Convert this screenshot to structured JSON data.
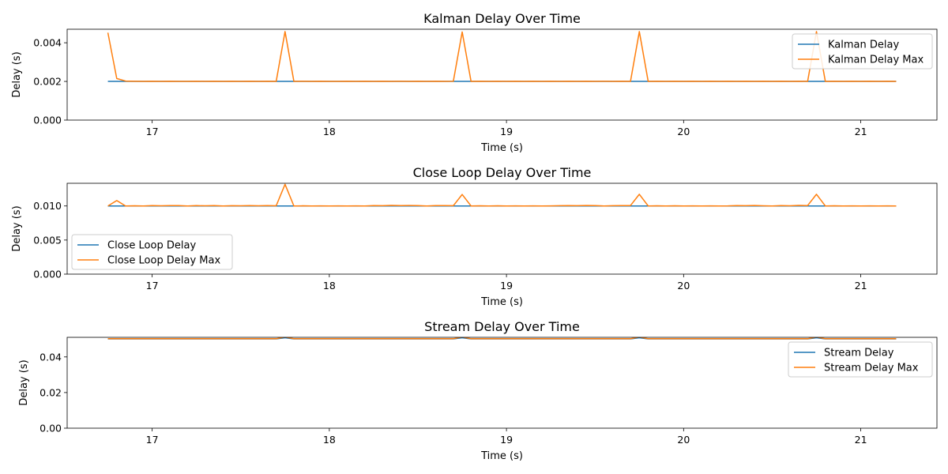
{
  "chart_data": [
    {
      "type": "line",
      "title": "Kalman Delay Over Time",
      "xlabel": "Time (s)",
      "ylabel": "Delay (s)",
      "xlim": [
        16.52,
        21.43
      ],
      "ylim": [
        0,
        0.0047
      ],
      "xticks": [
        17,
        18,
        19,
        20,
        21
      ],
      "xtick_labels": [
        "17",
        "18",
        "19",
        "20",
        "21"
      ],
      "yticks": [
        0,
        0.002,
        0.004
      ],
      "ytick_labels": [
        "0.000",
        "0.002",
        "0.004"
      ],
      "grid": false,
      "legend_position": "upper-right",
      "x": [
        16.75,
        16.8,
        16.85,
        16.9,
        16.95,
        17.0,
        17.05,
        17.1,
        17.15,
        17.2,
        17.25,
        17.3,
        17.35,
        17.4,
        17.45,
        17.5,
        17.55,
        17.6,
        17.65,
        17.7,
        17.75,
        17.8,
        17.85,
        17.9,
        17.95,
        18.0,
        18.05,
        18.1,
        18.15,
        18.2,
        18.25,
        18.3,
        18.35,
        18.4,
        18.45,
        18.5,
        18.55,
        18.6,
        18.65,
        18.7,
        18.75,
        18.8,
        18.85,
        18.9,
        18.95,
        19.0,
        19.05,
        19.1,
        19.15,
        19.2,
        19.25,
        19.3,
        19.35,
        19.4,
        19.45,
        19.5,
        19.55,
        19.6,
        19.65,
        19.7,
        19.75,
        19.8,
        19.85,
        19.9,
        19.95,
        20.0,
        20.05,
        20.1,
        20.15,
        20.2,
        20.25,
        20.3,
        20.35,
        20.4,
        20.45,
        20.5,
        20.55,
        20.6,
        20.65,
        20.7,
        20.75,
        20.8,
        20.85,
        20.9,
        20.95,
        21.0,
        21.05,
        21.1,
        21.15,
        21.2
      ],
      "series": [
        {
          "name": "Kalman Delay",
          "color": "#1f77b4",
          "values": [
            0.002,
            0.002,
            0.002,
            0.002,
            0.002,
            0.002,
            0.002,
            0.002,
            0.002,
            0.002,
            0.002,
            0.002,
            0.002,
            0.002,
            0.002,
            0.002,
            0.002,
            0.002,
            0.002,
            0.002,
            0.002,
            0.002,
            0.002,
            0.002,
            0.002,
            0.002,
            0.002,
            0.002,
            0.002,
            0.002,
            0.002,
            0.002,
            0.002,
            0.002,
            0.002,
            0.002,
            0.002,
            0.002,
            0.002,
            0.002,
            0.002,
            0.002,
            0.002,
            0.002,
            0.002,
            0.002,
            0.002,
            0.002,
            0.002,
            0.002,
            0.002,
            0.002,
            0.002,
            0.002,
            0.002,
            0.002,
            0.002,
            0.002,
            0.002,
            0.002,
            0.002,
            0.002,
            0.002,
            0.002,
            0.002,
            0.002,
            0.002,
            0.002,
            0.002,
            0.002,
            0.002,
            0.002,
            0.002,
            0.002,
            0.002,
            0.002,
            0.002,
            0.002,
            0.002,
            0.002,
            0.002,
            0.002,
            0.002,
            0.002,
            0.002,
            0.002,
            0.002,
            0.002,
            0.002,
            0.002
          ]
        },
        {
          "name": "Kalman Delay Max",
          "color": "#ff7f0e",
          "values": [
            0.00452,
            0.00215,
            0.00202,
            0.00201,
            0.002,
            0.00201,
            0.002,
            0.00201,
            0.002,
            0.002,
            0.00201,
            0.002,
            0.00201,
            0.002,
            0.00201,
            0.002,
            0.00201,
            0.002,
            0.00201,
            0.002,
            0.00458,
            0.002,
            0.00201,
            0.002,
            0.00201,
            0.002,
            0.002,
            0.00201,
            0.002,
            0.00201,
            0.002,
            0.00201,
            0.002,
            0.00201,
            0.002,
            0.00201,
            0.002,
            0.00201,
            0.002,
            0.00201,
            0.00456,
            0.002,
            0.00201,
            0.002,
            0.00201,
            0.002,
            0.00201,
            0.002,
            0.00201,
            0.002,
            0.00201,
            0.002,
            0.00201,
            0.002,
            0.00201,
            0.002,
            0.00201,
            0.002,
            0.00201,
            0.002,
            0.00458,
            0.002,
            0.00201,
            0.002,
            0.00201,
            0.002,
            0.00201,
            0.002,
            0.00201,
            0.002,
            0.00201,
            0.002,
            0.00201,
            0.002,
            0.00201,
            0.002,
            0.00201,
            0.002,
            0.00201,
            0.002,
            0.00458,
            0.002,
            0.00201,
            0.002,
            0.00201,
            0.002,
            0.00201,
            0.002,
            0.00201,
            0.002
          ]
        }
      ]
    },
    {
      "type": "line",
      "title": "Close Loop Delay Over Time",
      "xlabel": "Time (s)",
      "ylabel": "Delay (s)",
      "xlim": [
        16.52,
        21.43
      ],
      "ylim": [
        0,
        0.01333
      ],
      "xticks": [
        17,
        18,
        19,
        20,
        21
      ],
      "xtick_labels": [
        "17",
        "18",
        "19",
        "20",
        "21"
      ],
      "yticks": [
        0,
        0.005,
        0.01
      ],
      "ytick_labels": [
        "0.000",
        "0.005",
        "0.010"
      ],
      "grid": false,
      "legend_position": "lower-left",
      "x": [
        16.75,
        16.8,
        16.85,
        16.9,
        16.95,
        17.0,
        17.05,
        17.1,
        17.15,
        17.2,
        17.25,
        17.3,
        17.35,
        17.4,
        17.45,
        17.5,
        17.55,
        17.6,
        17.65,
        17.7,
        17.75,
        17.8,
        17.85,
        17.9,
        17.95,
        18.0,
        18.05,
        18.1,
        18.15,
        18.2,
        18.25,
        18.3,
        18.35,
        18.4,
        18.45,
        18.5,
        18.55,
        18.6,
        18.65,
        18.7,
        18.75,
        18.8,
        18.85,
        18.9,
        18.95,
        19.0,
        19.05,
        19.1,
        19.15,
        19.2,
        19.25,
        19.3,
        19.35,
        19.4,
        19.45,
        19.5,
        19.55,
        19.6,
        19.65,
        19.7,
        19.75,
        19.8,
        19.85,
        19.9,
        19.95,
        20.0,
        20.05,
        20.1,
        20.15,
        20.2,
        20.25,
        20.3,
        20.35,
        20.4,
        20.45,
        20.5,
        20.55,
        20.6,
        20.65,
        20.7,
        20.75,
        20.8,
        20.85,
        20.9,
        20.95,
        21.0,
        21.05,
        21.1,
        21.15,
        21.2
      ],
      "series": [
        {
          "name": "Close Loop Delay",
          "color": "#1f77b4",
          "values": [
            0.01,
            0.01,
            0.01,
            0.01,
            0.01,
            0.01,
            0.01,
            0.01,
            0.01,
            0.01,
            0.01,
            0.01,
            0.01,
            0.01,
            0.01,
            0.01,
            0.01,
            0.01,
            0.01,
            0.01,
            0.01,
            0.01,
            0.01,
            0.01,
            0.01,
            0.01,
            0.01,
            0.01,
            0.01,
            0.01,
            0.01,
            0.01,
            0.01,
            0.01,
            0.01,
            0.01,
            0.01,
            0.01,
            0.01,
            0.01,
            0.01,
            0.01,
            0.01,
            0.01,
            0.01,
            0.01,
            0.01,
            0.01,
            0.01,
            0.01,
            0.01,
            0.01,
            0.01,
            0.01,
            0.01,
            0.01,
            0.01,
            0.01,
            0.01,
            0.01,
            0.01,
            0.01,
            0.01,
            0.01,
            0.01,
            0.01,
            0.01,
            0.01,
            0.01,
            0.01,
            0.01,
            0.01,
            0.01,
            0.01,
            0.01,
            0.01,
            0.01,
            0.01,
            0.01,
            0.01,
            0.01,
            0.01,
            0.01,
            0.01,
            0.01,
            0.01,
            0.01,
            0.01,
            0.01,
            0.01
          ]
        },
        {
          "name": "Close Loop Delay Max",
          "color": "#ff7f0e",
          "values": [
            0.01,
            0.0108,
            0.01,
            0.01002,
            0.01,
            0.01005,
            0.01003,
            0.01006,
            0.01005,
            0.01,
            0.01005,
            0.01002,
            0.01006,
            0.01,
            0.01004,
            0.01002,
            0.01005,
            0.01003,
            0.01006,
            0.01003,
            0.01318,
            0.01,
            0.01002,
            0.01,
            0.01001,
            0.01,
            0.01001,
            0.01,
            0.01001,
            0.01,
            0.01005,
            0.01004,
            0.01008,
            0.01006,
            0.01007,
            0.01006,
            0.01,
            0.01005,
            0.01006,
            0.01004,
            0.01169,
            0.01,
            0.01002,
            0.01,
            0.01002,
            0.01,
            0.01001,
            0.01,
            0.01001,
            0.01,
            0.01001,
            0.01004,
            0.01006,
            0.01004,
            0.01007,
            0.01005,
            0.01,
            0.01004,
            0.01005,
            0.01006,
            0.01172,
            0.01,
            0.01002,
            0.01,
            0.01002,
            0.01,
            0.01001,
            0.01,
            0.01001,
            0.01,
            0.01001,
            0.01005,
            0.01004,
            0.01007,
            0.01003,
            0.01,
            0.01006,
            0.01002,
            0.01009,
            0.01006,
            0.01172,
            0.01,
            0.01002,
            0.01,
            0.01001,
            0.01,
            0.01001,
            0.01,
            0.01001,
            0.01
          ]
        }
      ]
    },
    {
      "type": "line",
      "title": "Stream Delay Over Time",
      "xlabel": "Time (s)",
      "ylabel": "Delay (s)",
      "xlim": [
        16.52,
        21.43
      ],
      "ylim": [
        0,
        0.051
      ],
      "xticks": [
        17,
        18,
        19,
        20,
        21
      ],
      "xtick_labels": [
        "17",
        "18",
        "19",
        "20",
        "21"
      ],
      "yticks": [
        0,
        0.02,
        0.04
      ],
      "ytick_labels": [
        "0.00",
        "0.02",
        "0.04"
      ],
      "grid": false,
      "legend_position": "upper-right",
      "x": [
        16.75,
        16.8,
        16.85,
        16.9,
        16.95,
        17.0,
        17.05,
        17.1,
        17.15,
        17.2,
        17.25,
        17.3,
        17.35,
        17.4,
        17.45,
        17.5,
        17.55,
        17.6,
        17.65,
        17.7,
        17.75,
        17.8,
        17.85,
        17.9,
        17.95,
        18.0,
        18.05,
        18.1,
        18.15,
        18.2,
        18.25,
        18.3,
        18.35,
        18.4,
        18.45,
        18.5,
        18.55,
        18.6,
        18.65,
        18.7,
        18.75,
        18.8,
        18.85,
        18.9,
        18.95,
        19.0,
        19.05,
        19.1,
        19.15,
        19.2,
        19.25,
        19.3,
        19.35,
        19.4,
        19.45,
        19.5,
        19.55,
        19.6,
        19.65,
        19.7,
        19.75,
        19.8,
        19.85,
        19.9,
        19.95,
        20.0,
        20.05,
        20.1,
        20.15,
        20.2,
        20.25,
        20.3,
        20.35,
        20.4,
        20.45,
        20.5,
        20.55,
        20.6,
        20.65,
        20.7,
        20.75,
        20.8,
        20.85,
        20.9,
        20.95,
        21.0,
        21.05,
        21.1,
        21.15,
        21.2
      ],
      "series": [
        {
          "name": "Stream Delay",
          "color": "#1f77b4",
          "values": [
            0.0501,
            0.0501,
            0.0501,
            0.0501,
            0.0501,
            0.0501,
            0.0501,
            0.0501,
            0.0501,
            0.0501,
            0.0501,
            0.0501,
            0.0501,
            0.0501,
            0.0501,
            0.0501,
            0.0501,
            0.0501,
            0.0501,
            0.0501,
            0.0508,
            0.0501,
            0.0501,
            0.0501,
            0.0501,
            0.0501,
            0.0501,
            0.0501,
            0.0501,
            0.0501,
            0.0501,
            0.0501,
            0.0501,
            0.0501,
            0.0501,
            0.0501,
            0.0501,
            0.0501,
            0.0501,
            0.0501,
            0.0508,
            0.0501,
            0.0501,
            0.0501,
            0.0501,
            0.0501,
            0.0501,
            0.0501,
            0.0501,
            0.0501,
            0.0501,
            0.0501,
            0.0501,
            0.0501,
            0.0501,
            0.0501,
            0.0501,
            0.0501,
            0.0501,
            0.0501,
            0.0508,
            0.0501,
            0.0501,
            0.0501,
            0.0501,
            0.0501,
            0.0501,
            0.0501,
            0.0501,
            0.0501,
            0.0501,
            0.0501,
            0.0501,
            0.0501,
            0.0501,
            0.0501,
            0.0501,
            0.0501,
            0.0501,
            0.0501,
            0.0508,
            0.0501,
            0.0501,
            0.0501,
            0.0501,
            0.0501,
            0.0501,
            0.0501,
            0.0501,
            0.0501
          ]
        },
        {
          "name": "Stream Delay Max",
          "color": "#ff7f0e",
          "values": [
            0.0502,
            0.0502,
            0.0502,
            0.0502,
            0.0502,
            0.0502,
            0.0502,
            0.0502,
            0.0502,
            0.0502,
            0.0502,
            0.0502,
            0.0502,
            0.0502,
            0.0502,
            0.0502,
            0.0502,
            0.0502,
            0.0502,
            0.0502,
            0.0512,
            0.0502,
            0.0502,
            0.0502,
            0.0502,
            0.0502,
            0.0502,
            0.0502,
            0.0502,
            0.0502,
            0.0502,
            0.0502,
            0.0502,
            0.0502,
            0.0502,
            0.0502,
            0.0502,
            0.0502,
            0.0502,
            0.0502,
            0.0512,
            0.0502,
            0.0502,
            0.0502,
            0.0502,
            0.0502,
            0.0502,
            0.0502,
            0.0502,
            0.0502,
            0.0502,
            0.0502,
            0.0502,
            0.0502,
            0.0502,
            0.0502,
            0.0502,
            0.0502,
            0.0502,
            0.0502,
            0.0512,
            0.0502,
            0.0502,
            0.0502,
            0.0502,
            0.0502,
            0.0502,
            0.0502,
            0.0502,
            0.0502,
            0.0502,
            0.0502,
            0.0502,
            0.0502,
            0.0502,
            0.0502,
            0.0502,
            0.0502,
            0.0502,
            0.0502,
            0.0512,
            0.0502,
            0.0502,
            0.0502,
            0.0502,
            0.0502,
            0.0502,
            0.0502,
            0.0502,
            0.0502
          ]
        }
      ]
    }
  ]
}
